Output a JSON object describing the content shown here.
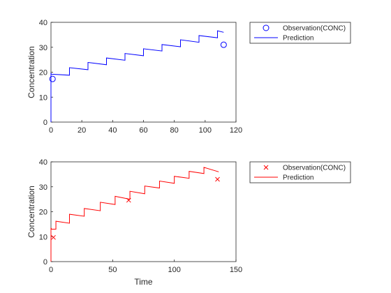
{
  "chart_data": [
    {
      "type": "line",
      "xlabel": "",
      "ylabel": "Concentration",
      "xlim": [
        0,
        120
      ],
      "ylim": [
        0,
        40
      ],
      "xticks": [
        0,
        20,
        40,
        60,
        80,
        100,
        120
      ],
      "yticks": [
        0,
        10,
        20,
        30,
        40
      ],
      "grid": false,
      "legend_position": "outside-top-right",
      "series": [
        {
          "name": "Observation(CONC)",
          "kind": "scatter",
          "marker": "circle",
          "color": "#0000ff",
          "x": [
            1,
            112
          ],
          "y": [
            17.3,
            31.0
          ]
        },
        {
          "name": "Prediction",
          "kind": "line",
          "color": "#0000ff",
          "x": [
            0,
            0,
            0.5,
            12,
            12,
            24,
            24,
            36,
            36,
            48,
            48,
            60,
            60,
            72,
            72,
            84,
            84,
            96,
            96,
            108,
            108,
            112
          ],
          "y": [
            0,
            19.5,
            19.2,
            18.8,
            21.8,
            21.0,
            23.9,
            23.0,
            25.7,
            24.8,
            27.5,
            26.6,
            29.4,
            28.5,
            31.1,
            30.2,
            33.0,
            32.0,
            34.7,
            33.8,
            36.6,
            36.0
          ]
        }
      ]
    },
    {
      "type": "line",
      "xlabel": "Time",
      "ylabel": "Concentration",
      "xlim": [
        0,
        150
      ],
      "ylim": [
        0,
        40
      ],
      "xticks": [
        0,
        50,
        100,
        150
      ],
      "yticks": [
        0,
        10,
        20,
        30,
        40
      ],
      "grid": false,
      "legend_position": "outside-top-right",
      "series": [
        {
          "name": "Observation(CONC)",
          "kind": "scatter",
          "marker": "x",
          "color": "#ff0000",
          "x": [
            2,
            63,
            135
          ],
          "y": [
            9.7,
            24.6,
            33.0
          ]
        },
        {
          "name": "Prediction",
          "kind": "line",
          "color": "#ff0000",
          "x": [
            0,
            0,
            0.5,
            4,
            4,
            15,
            15,
            27,
            27,
            40,
            40,
            52,
            52,
            64,
            64,
            76,
            76,
            88,
            88,
            100,
            100,
            112,
            112,
            124,
            124,
            136
          ],
          "y": [
            0,
            13.5,
            13.0,
            13.0,
            16.2,
            15.4,
            19.0,
            18.2,
            21.3,
            20.4,
            23.8,
            22.9,
            26.2,
            25.0,
            28.2,
            27.2,
            30.3,
            29.5,
            32.3,
            31.4,
            34.2,
            33.4,
            36.2,
            35.3,
            37.8,
            36.0
          ]
        }
      ]
    }
  ]
}
